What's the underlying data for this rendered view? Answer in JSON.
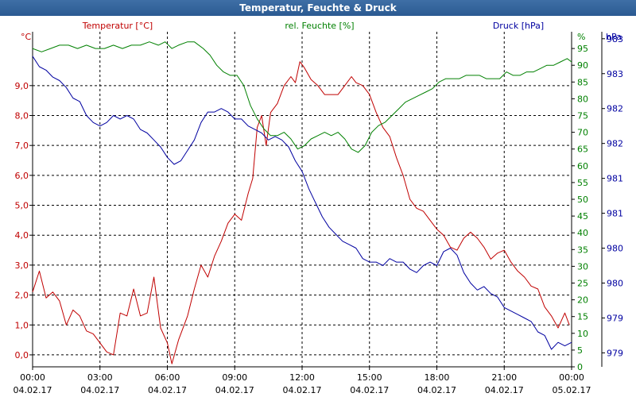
{
  "window": {
    "title": "Temperatur, Feuchte & Druck"
  },
  "colors": {
    "temperature": "#c00000",
    "humidity": "#008000",
    "pressure": "#0000a0",
    "grid": "#000000",
    "axis_text": "#000000"
  },
  "chart_data": {
    "type": "line",
    "title": "Temperatur, Feuchte & Druck",
    "x_ticks": [
      {
        "h": 0,
        "time": "00:00",
        "date": "04.02.17"
      },
      {
        "h": 3,
        "time": "03:00",
        "date": "04.02.17"
      },
      {
        "h": 6,
        "time": "06:00",
        "date": "04.02.17"
      },
      {
        "h": 9,
        "time": "09:00",
        "date": "04.02.17"
      },
      {
        "h": 12,
        "time": "12:00",
        "date": "04.02.17"
      },
      {
        "h": 15,
        "time": "15:00",
        "date": "04.02.17"
      },
      {
        "h": 18,
        "time": "18:00",
        "date": "04.02.17"
      },
      {
        "h": 21,
        "time": "21:00",
        "date": "04.02.17"
      },
      {
        "h": 24,
        "time": "00:00",
        "date": "05.02.17"
      }
    ],
    "x_range": [
      0,
      24
    ],
    "axes": {
      "temperature": {
        "label": "Temperatur [°C]",
        "unit": "°C",
        "range": [
          -0.4,
          10.8
        ],
        "ticks": [
          "0,0",
          "1,0",
          "2,0",
          "3,0",
          "4,0",
          "5,0",
          "6,0",
          "7,0",
          "8,0",
          "9,0"
        ],
        "tick_values": [
          0,
          1,
          2,
          3,
          4,
          5,
          6,
          7,
          8,
          9
        ]
      },
      "humidity": {
        "label": "rel. Feuchte [%]",
        "unit": "%",
        "range": [
          0,
          100
        ],
        "ticks": [
          "0",
          "5",
          "10",
          "15",
          "20",
          "25",
          "30",
          "35",
          "40",
          "45",
          "50",
          "55",
          "60",
          "65",
          "70",
          "75",
          "80",
          "85",
          "90",
          "95"
        ],
        "tick_values": [
          0,
          5,
          10,
          15,
          20,
          25,
          30,
          35,
          40,
          45,
          50,
          55,
          60,
          65,
          70,
          75,
          80,
          85,
          90,
          95
        ]
      },
      "pressure": {
        "label": "Druck [hPa]",
        "unit": "hPa",
        "range": [
          978.6,
          983.4
        ],
        "ticks": [
          "979",
          "979",
          "980",
          "980",
          "981",
          "981",
          "982",
          "982",
          "983",
          "983"
        ],
        "tick_values": [
          978.8,
          979.3,
          979.8,
          980.3,
          980.8,
          981.3,
          981.8,
          982.3,
          982.8,
          983.3
        ]
      }
    },
    "series": [
      {
        "name": "Temperatur [°C]",
        "axis": "temperature",
        "points": [
          [
            0,
            2.1
          ],
          [
            0.3,
            2.8
          ],
          [
            0.6,
            1.9
          ],
          [
            0.9,
            2.1
          ],
          [
            1.2,
            1.8
          ],
          [
            1.5,
            1.0
          ],
          [
            1.8,
            1.5
          ],
          [
            2.1,
            1.3
          ],
          [
            2.4,
            0.8
          ],
          [
            2.7,
            0.7
          ],
          [
            3.0,
            0.4
          ],
          [
            3.3,
            0.1
          ],
          [
            3.6,
            0.0
          ],
          [
            3.9,
            1.4
          ],
          [
            4.2,
            1.3
          ],
          [
            4.5,
            2.2
          ],
          [
            4.8,
            1.3
          ],
          [
            5.1,
            1.4
          ],
          [
            5.4,
            2.6
          ],
          [
            5.7,
            0.9
          ],
          [
            6.0,
            0.4
          ],
          [
            6.2,
            -0.3
          ],
          [
            6.5,
            0.5
          ],
          [
            6.9,
            1.3
          ],
          [
            7.2,
            2.2
          ],
          [
            7.5,
            3.0
          ],
          [
            7.8,
            2.6
          ],
          [
            8.1,
            3.3
          ],
          [
            8.4,
            3.8
          ],
          [
            8.7,
            4.4
          ],
          [
            9.0,
            4.7
          ],
          [
            9.3,
            4.5
          ],
          [
            9.6,
            5.4
          ],
          [
            9.8,
            5.9
          ],
          [
            10.0,
            7.6
          ],
          [
            10.2,
            8.0
          ],
          [
            10.4,
            7.0
          ],
          [
            10.6,
            8.1
          ],
          [
            10.9,
            8.4
          ],
          [
            11.2,
            9.0
          ],
          [
            11.5,
            9.3
          ],
          [
            11.7,
            9.1
          ],
          [
            11.9,
            9.8
          ],
          [
            12.1,
            9.6
          ],
          [
            12.4,
            9.2
          ],
          [
            12.7,
            9.0
          ],
          [
            13.0,
            8.7
          ],
          [
            13.3,
            8.7
          ],
          [
            13.6,
            8.7
          ],
          [
            13.9,
            9.0
          ],
          [
            14.2,
            9.3
          ],
          [
            14.4,
            9.1
          ],
          [
            14.7,
            9.0
          ],
          [
            15.0,
            8.7
          ],
          [
            15.3,
            8.1
          ],
          [
            15.6,
            7.6
          ],
          [
            15.9,
            7.3
          ],
          [
            16.2,
            6.6
          ],
          [
            16.5,
            6.0
          ],
          [
            16.8,
            5.2
          ],
          [
            17.1,
            4.9
          ],
          [
            17.4,
            4.8
          ],
          [
            17.7,
            4.5
          ],
          [
            18.0,
            4.2
          ],
          [
            18.3,
            4.0
          ],
          [
            18.6,
            3.6
          ],
          [
            18.9,
            3.5
          ],
          [
            19.2,
            3.9
          ],
          [
            19.5,
            4.1
          ],
          [
            19.8,
            3.9
          ],
          [
            20.1,
            3.6
          ],
          [
            20.4,
            3.2
          ],
          [
            20.7,
            3.4
          ],
          [
            21.0,
            3.5
          ],
          [
            21.3,
            3.1
          ],
          [
            21.6,
            2.8
          ],
          [
            21.9,
            2.6
          ],
          [
            22.2,
            2.3
          ],
          [
            22.5,
            2.2
          ],
          [
            22.8,
            1.6
          ],
          [
            23.1,
            1.3
          ],
          [
            23.4,
            0.9
          ],
          [
            23.7,
            1.4
          ],
          [
            23.9,
            1.0
          ]
        ]
      },
      {
        "name": "rel. Feuchte [%]",
        "axis": "humidity",
        "points": [
          [
            0,
            95
          ],
          [
            0.4,
            94
          ],
          [
            0.8,
            95
          ],
          [
            1.2,
            96
          ],
          [
            1.6,
            96
          ],
          [
            2.0,
            95
          ],
          [
            2.4,
            96
          ],
          [
            2.8,
            95
          ],
          [
            3.2,
            95
          ],
          [
            3.6,
            96
          ],
          [
            4.0,
            95
          ],
          [
            4.4,
            96
          ],
          [
            4.8,
            96
          ],
          [
            5.2,
            97
          ],
          [
            5.6,
            96
          ],
          [
            5.9,
            97
          ],
          [
            6.2,
            95
          ],
          [
            6.5,
            96
          ],
          [
            6.9,
            97
          ],
          [
            7.2,
            97
          ],
          [
            7.6,
            95
          ],
          [
            7.9,
            93
          ],
          [
            8.2,
            90
          ],
          [
            8.5,
            88
          ],
          [
            8.8,
            87
          ],
          [
            9.1,
            87
          ],
          [
            9.4,
            84
          ],
          [
            9.7,
            78
          ],
          [
            10.0,
            74
          ],
          [
            10.3,
            71
          ],
          [
            10.6,
            69
          ],
          [
            10.9,
            69
          ],
          [
            11.2,
            70
          ],
          [
            11.5,
            68
          ],
          [
            11.8,
            65
          ],
          [
            12.1,
            66
          ],
          [
            12.4,
            68
          ],
          [
            12.7,
            69
          ],
          [
            13.0,
            70
          ],
          [
            13.3,
            69
          ],
          [
            13.6,
            70
          ],
          [
            13.9,
            68
          ],
          [
            14.2,
            65
          ],
          [
            14.5,
            64
          ],
          [
            14.8,
            66
          ],
          [
            15.1,
            70
          ],
          [
            15.4,
            72
          ],
          [
            15.7,
            73
          ],
          [
            16.0,
            75
          ],
          [
            16.3,
            77
          ],
          [
            16.6,
            79
          ],
          [
            16.9,
            80
          ],
          [
            17.2,
            81
          ],
          [
            17.5,
            82
          ],
          [
            17.8,
            83
          ],
          [
            18.1,
            85
          ],
          [
            18.4,
            86
          ],
          [
            18.7,
            86
          ],
          [
            19.0,
            86
          ],
          [
            19.3,
            87
          ],
          [
            19.6,
            87
          ],
          [
            19.9,
            87
          ],
          [
            20.2,
            86
          ],
          [
            20.5,
            86
          ],
          [
            20.8,
            86
          ],
          [
            21.1,
            88
          ],
          [
            21.4,
            87
          ],
          [
            21.7,
            87
          ],
          [
            22.0,
            88
          ],
          [
            22.3,
            88
          ],
          [
            22.6,
            89
          ],
          [
            22.9,
            90
          ],
          [
            23.2,
            90
          ],
          [
            23.5,
            91
          ],
          [
            23.8,
            92
          ],
          [
            24.0,
            91
          ]
        ]
      },
      {
        "name": "Druck [hPa]",
        "axis": "pressure",
        "points": [
          [
            0,
            983.05
          ],
          [
            0.3,
            982.9
          ],
          [
            0.6,
            982.85
          ],
          [
            0.9,
            982.75
          ],
          [
            1.2,
            982.7
          ],
          [
            1.5,
            982.6
          ],
          [
            1.8,
            982.45
          ],
          [
            2.1,
            982.4
          ],
          [
            2.4,
            982.2
          ],
          [
            2.7,
            982.1
          ],
          [
            3.0,
            982.05
          ],
          [
            3.3,
            982.1
          ],
          [
            3.6,
            982.2
          ],
          [
            3.9,
            982.15
          ],
          [
            4.2,
            982.2
          ],
          [
            4.5,
            982.15
          ],
          [
            4.8,
            982.0
          ],
          [
            5.1,
            981.95
          ],
          [
            5.4,
            981.85
          ],
          [
            5.7,
            981.75
          ],
          [
            6.0,
            981.6
          ],
          [
            6.3,
            981.5
          ],
          [
            6.6,
            981.55
          ],
          [
            6.9,
            981.7
          ],
          [
            7.2,
            981.85
          ],
          [
            7.5,
            982.1
          ],
          [
            7.8,
            982.25
          ],
          [
            8.1,
            982.25
          ],
          [
            8.4,
            982.3
          ],
          [
            8.7,
            982.25
          ],
          [
            9.0,
            982.15
          ],
          [
            9.3,
            982.15
          ],
          [
            9.6,
            982.05
          ],
          [
            9.9,
            982.0
          ],
          [
            10.2,
            981.95
          ],
          [
            10.5,
            981.85
          ],
          [
            10.8,
            981.9
          ],
          [
            11.1,
            981.85
          ],
          [
            11.4,
            981.75
          ],
          [
            11.7,
            981.55
          ],
          [
            12.0,
            981.4
          ],
          [
            12.3,
            981.15
          ],
          [
            12.6,
            980.95
          ],
          [
            12.9,
            980.75
          ],
          [
            13.2,
            980.6
          ],
          [
            13.5,
            980.5
          ],
          [
            13.8,
            980.4
          ],
          [
            14.1,
            980.35
          ],
          [
            14.4,
            980.3
          ],
          [
            14.7,
            980.15
          ],
          [
            15.0,
            980.1
          ],
          [
            15.3,
            980.1
          ],
          [
            15.6,
            980.05
          ],
          [
            15.9,
            980.15
          ],
          [
            16.2,
            980.1
          ],
          [
            16.5,
            980.1
          ],
          [
            16.8,
            980.0
          ],
          [
            17.1,
            979.95
          ],
          [
            17.4,
            980.05
          ],
          [
            17.7,
            980.1
          ],
          [
            18.0,
            980.05
          ],
          [
            18.3,
            980.25
          ],
          [
            18.6,
            980.3
          ],
          [
            18.9,
            980.2
          ],
          [
            19.2,
            979.95
          ],
          [
            19.5,
            979.8
          ],
          [
            19.8,
            979.7
          ],
          [
            20.1,
            979.75
          ],
          [
            20.4,
            979.65
          ],
          [
            20.7,
            979.6
          ],
          [
            21.0,
            979.45
          ],
          [
            21.3,
            979.4
          ],
          [
            21.6,
            979.35
          ],
          [
            21.9,
            979.3
          ],
          [
            22.2,
            979.25
          ],
          [
            22.5,
            979.1
          ],
          [
            22.8,
            979.05
          ],
          [
            23.1,
            978.85
          ],
          [
            23.4,
            978.95
          ],
          [
            23.7,
            978.9
          ],
          [
            24.0,
            978.95
          ]
        ]
      }
    ]
  }
}
